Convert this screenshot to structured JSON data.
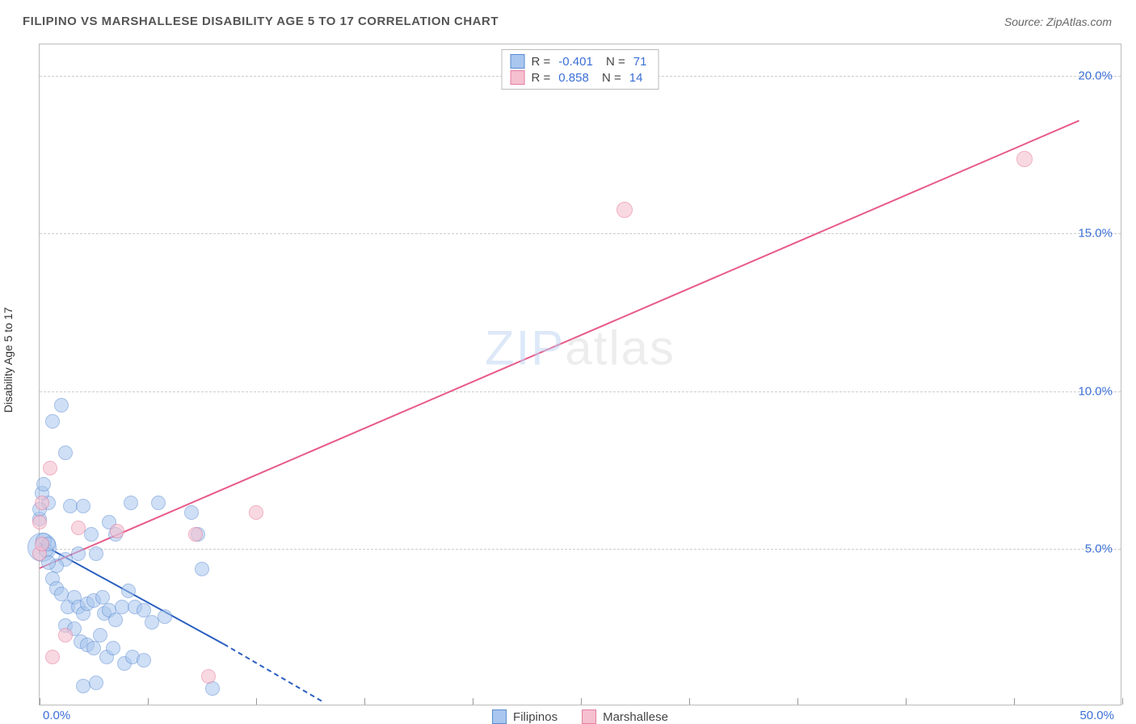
{
  "title": "FILIPINO VS MARSHALLESE DISABILITY AGE 5 TO 17 CORRELATION CHART",
  "source": "Source: ZipAtlas.com",
  "y_axis_label": "Disability Age 5 to 17",
  "watermark": {
    "a": "ZIP",
    "b": "atlas"
  },
  "chart": {
    "type": "scatter",
    "xlim": [
      0,
      50
    ],
    "ylim": [
      0,
      21
    ],
    "x_ticks": [
      0,
      5,
      10,
      15,
      20,
      25,
      30,
      35,
      40,
      45,
      50
    ],
    "x_tick_labels": {
      "0": "0.0%",
      "50": "50.0%"
    },
    "y_gridlines": [
      5,
      10,
      15,
      20
    ],
    "y_tick_labels": {
      "5": "5.0%",
      "10": "10.0%",
      "15": "15.0%",
      "20": "20.0%"
    },
    "grid_color": "#cccccc",
    "background_color": "#ffffff",
    "axis_color": "#bbbbbb",
    "tick_label_color": "#3b6fd6",
    "series": [
      {
        "name": "Filipinos",
        "fill": "#a8c6ee",
        "stroke": "#5a8bd4",
        "fill_opacity": 0.55,
        "r_value": "-0.401",
        "n_value": "71",
        "trend": {
          "x1": 0,
          "y1": 5.2,
          "x2": 8.5,
          "y2": 2.0,
          "color": "#2a5fc0",
          "dash_x2": 13,
          "dash_y2": 0.2
        },
        "points": [
          {
            "x": 0.1,
            "y": 5.0,
            "r": 18
          },
          {
            "x": 0.2,
            "y": 5.2,
            "r": 10
          },
          {
            "x": 0.3,
            "y": 4.9,
            "r": 9
          },
          {
            "x": 0.4,
            "y": 5.1,
            "r": 9
          },
          {
            "x": 0.4,
            "y": 6.4,
            "r": 9
          },
          {
            "x": 0.0,
            "y": 5.9,
            "r": 9
          },
          {
            "x": 0.0,
            "y": 6.2,
            "r": 9
          },
          {
            "x": 0.1,
            "y": 6.7,
            "r": 9
          },
          {
            "x": 0.2,
            "y": 7.0,
            "r": 9
          },
          {
            "x": 0.6,
            "y": 9.0,
            "r": 9
          },
          {
            "x": 1.0,
            "y": 9.5,
            "r": 9
          },
          {
            "x": 1.2,
            "y": 8.0,
            "r": 9
          },
          {
            "x": 1.4,
            "y": 6.3,
            "r": 9
          },
          {
            "x": 2.0,
            "y": 6.3,
            "r": 9
          },
          {
            "x": 2.4,
            "y": 5.4,
            "r": 9
          },
          {
            "x": 3.2,
            "y": 5.8,
            "r": 9
          },
          {
            "x": 4.2,
            "y": 6.4,
            "r": 9
          },
          {
            "x": 5.5,
            "y": 6.4,
            "r": 9
          },
          {
            "x": 7.0,
            "y": 6.1,
            "r": 9
          },
          {
            "x": 7.3,
            "y": 5.4,
            "r": 9
          },
          {
            "x": 3.5,
            "y": 5.4,
            "r": 9
          },
          {
            "x": 2.6,
            "y": 4.8,
            "r": 9
          },
          {
            "x": 1.8,
            "y": 4.8,
            "r": 9
          },
          {
            "x": 1.2,
            "y": 4.6,
            "r": 9
          },
          {
            "x": 0.8,
            "y": 4.4,
            "r": 9
          },
          {
            "x": 0.4,
            "y": 4.5,
            "r": 9
          },
          {
            "x": 0.6,
            "y": 4.0,
            "r": 9
          },
          {
            "x": 7.5,
            "y": 4.3,
            "r": 9
          },
          {
            "x": 0.8,
            "y": 3.7,
            "r": 9
          },
          {
            "x": 1.0,
            "y": 3.5,
            "r": 9
          },
          {
            "x": 1.3,
            "y": 3.1,
            "r": 9
          },
          {
            "x": 1.6,
            "y": 3.4,
            "r": 9
          },
          {
            "x": 1.8,
            "y": 3.1,
            "r": 9
          },
          {
            "x": 2.0,
            "y": 2.9,
            "r": 9
          },
          {
            "x": 2.2,
            "y": 3.2,
            "r": 9
          },
          {
            "x": 2.5,
            "y": 3.3,
            "r": 9
          },
          {
            "x": 2.9,
            "y": 3.4,
            "r": 9
          },
          {
            "x": 3.0,
            "y": 2.9,
            "r": 9
          },
          {
            "x": 3.2,
            "y": 3.0,
            "r": 9
          },
          {
            "x": 3.5,
            "y": 2.7,
            "r": 9
          },
          {
            "x": 3.8,
            "y": 3.1,
            "r": 9
          },
          {
            "x": 4.1,
            "y": 3.6,
            "r": 9
          },
          {
            "x": 4.4,
            "y": 3.1,
            "r": 9
          },
          {
            "x": 4.8,
            "y": 3.0,
            "r": 9
          },
          {
            "x": 5.2,
            "y": 2.6,
            "r": 9
          },
          {
            "x": 5.8,
            "y": 2.8,
            "r": 9
          },
          {
            "x": 1.2,
            "y": 2.5,
            "r": 9
          },
          {
            "x": 1.6,
            "y": 2.4,
            "r": 9
          },
          {
            "x": 1.9,
            "y": 2.0,
            "r": 9
          },
          {
            "x": 2.2,
            "y": 1.9,
            "r": 9
          },
          {
            "x": 2.5,
            "y": 1.8,
            "r": 9
          },
          {
            "x": 2.8,
            "y": 2.2,
            "r": 9
          },
          {
            "x": 3.1,
            "y": 1.5,
            "r": 9
          },
          {
            "x": 3.4,
            "y": 1.8,
            "r": 9
          },
          {
            "x": 3.9,
            "y": 1.3,
            "r": 9
          },
          {
            "x": 4.3,
            "y": 1.5,
            "r": 9
          },
          {
            "x": 4.8,
            "y": 1.4,
            "r": 9
          },
          {
            "x": 8.0,
            "y": 0.5,
            "r": 9
          },
          {
            "x": 2.0,
            "y": 0.6,
            "r": 9
          },
          {
            "x": 2.6,
            "y": 0.7,
            "r": 9
          }
        ]
      },
      {
        "name": "Marshallese",
        "fill": "#f5c0cf",
        "stroke": "#e77da0",
        "fill_opacity": 0.6,
        "r_value": "0.858",
        "n_value": "14",
        "trend": {
          "x1": 0,
          "y1": 4.4,
          "x2": 48,
          "y2": 18.6,
          "color": "#e85a8a"
        },
        "points": [
          {
            "x": 0.0,
            "y": 5.8,
            "r": 9
          },
          {
            "x": 0.1,
            "y": 6.4,
            "r": 9
          },
          {
            "x": 0.5,
            "y": 7.5,
            "r": 9
          },
          {
            "x": 0.0,
            "y": 4.8,
            "r": 9
          },
          {
            "x": 0.1,
            "y": 5.1,
            "r": 9
          },
          {
            "x": 1.2,
            "y": 2.2,
            "r": 9
          },
          {
            "x": 1.8,
            "y": 5.6,
            "r": 9
          },
          {
            "x": 3.6,
            "y": 5.5,
            "r": 9
          },
          {
            "x": 0.6,
            "y": 1.5,
            "r": 9
          },
          {
            "x": 7.8,
            "y": 0.9,
            "r": 9
          },
          {
            "x": 10.0,
            "y": 6.1,
            "r": 9
          },
          {
            "x": 7.2,
            "y": 5.4,
            "r": 9
          },
          {
            "x": 27.0,
            "y": 15.7,
            "r": 10
          },
          {
            "x": 45.5,
            "y": 17.3,
            "r": 10
          }
        ]
      }
    ],
    "legend": [
      {
        "label": "Filipinos",
        "fill": "#a8c6ee",
        "stroke": "#5a8bd4"
      },
      {
        "label": "Marshallese",
        "fill": "#f5c0cf",
        "stroke": "#e77da0"
      }
    ]
  }
}
